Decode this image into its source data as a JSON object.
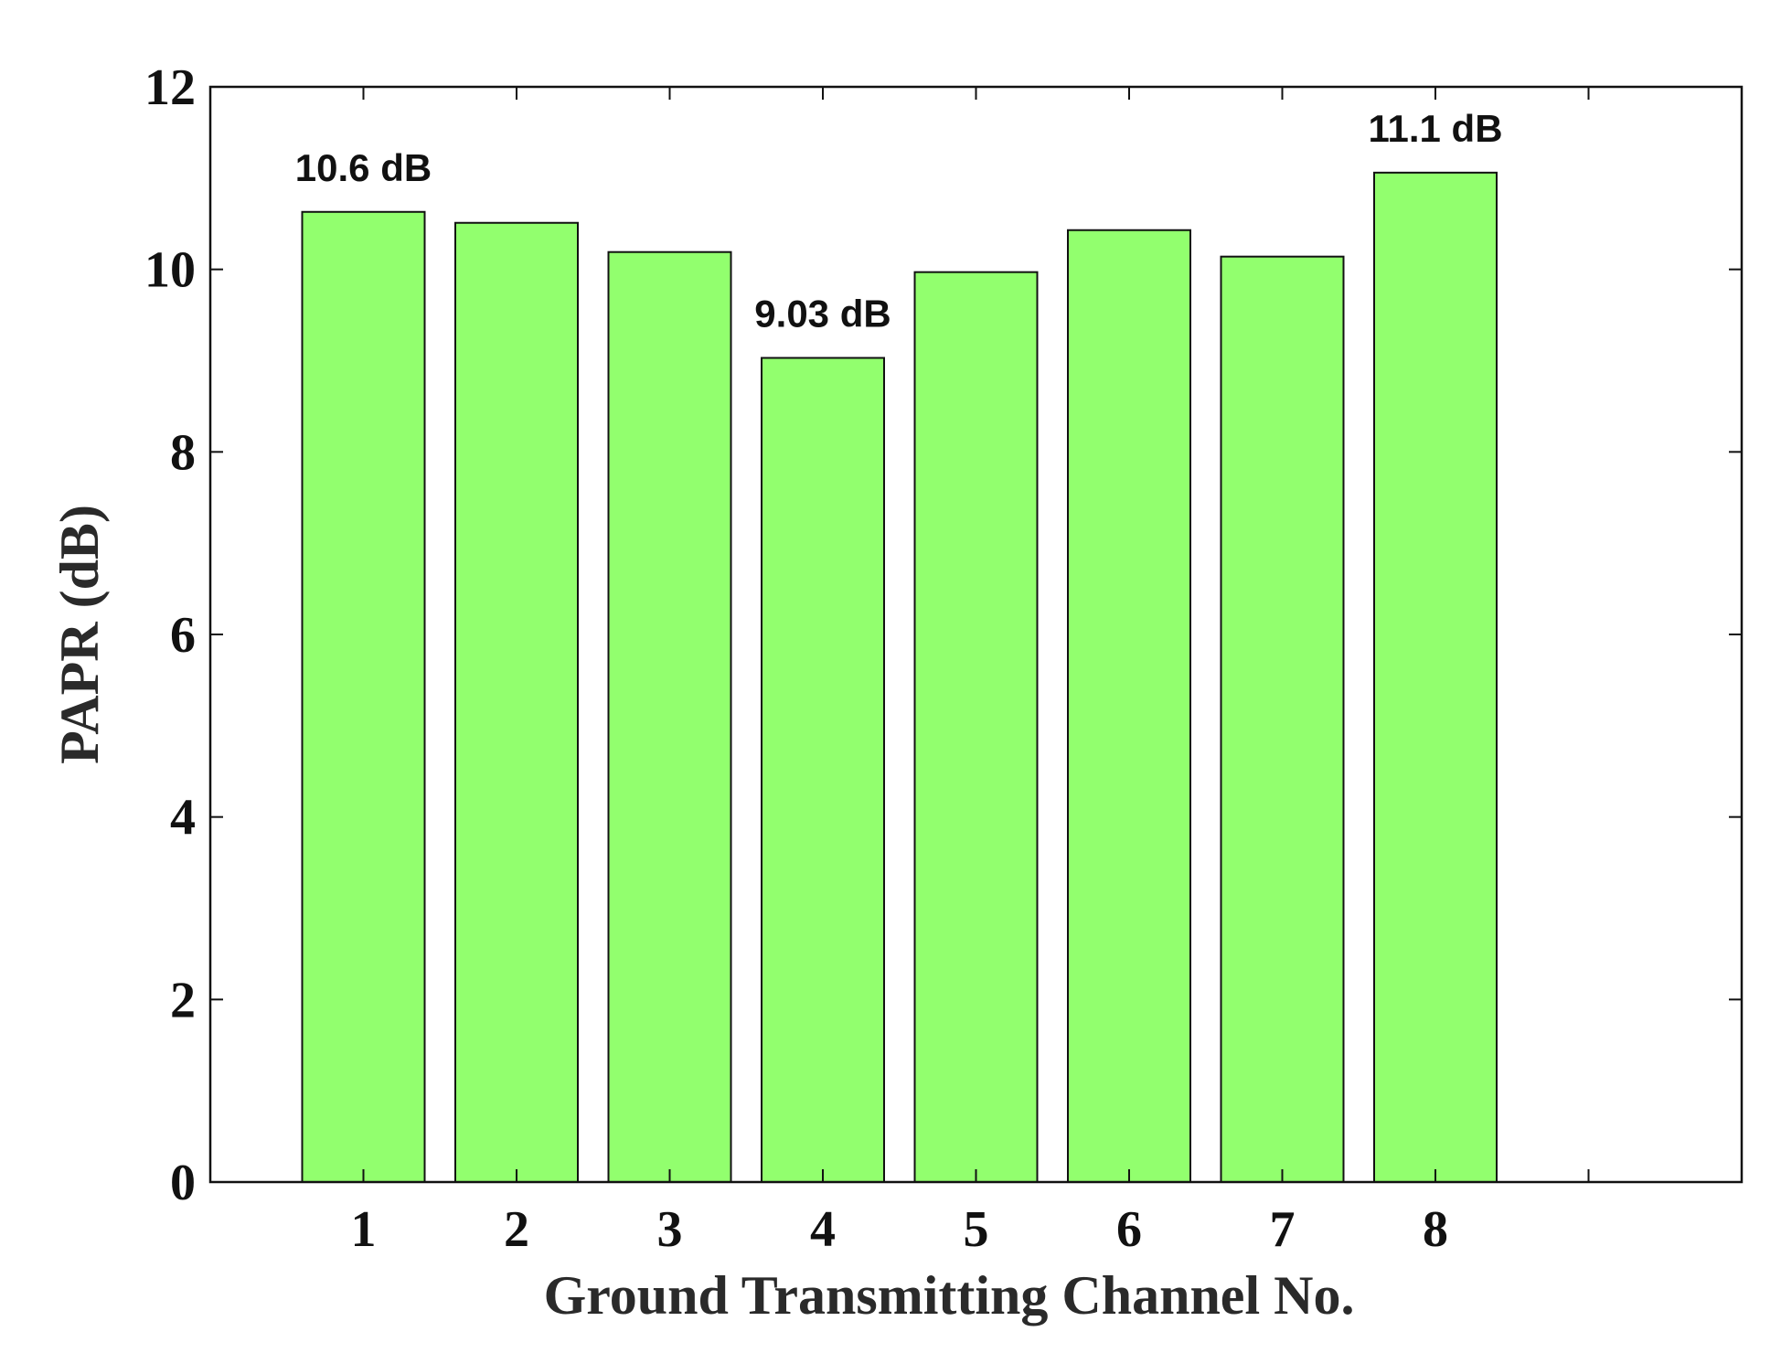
{
  "chart_data": {
    "type": "bar",
    "title": "",
    "xlabel": "Ground Transmitting Channel No.",
    "ylabel": "PAPR (dB)",
    "categories": [
      "1",
      "2",
      "3",
      "4",
      "5",
      "6",
      "7",
      "8"
    ],
    "values": [
      10.63,
      10.51,
      10.19,
      9.03,
      9.97,
      10.43,
      10.14,
      11.06
    ],
    "xlim": [
      0,
      10
    ],
    "ylim": [
      0,
      12
    ],
    "yticks": [
      "0",
      "2",
      "4",
      "6",
      "8",
      "10",
      "12"
    ],
    "grid": false,
    "bar_color": "#92ff6e",
    "annotations": [
      {
        "category": "1",
        "text": "10.6 dB"
      },
      {
        "category": "4",
        "text": "9.03 dB"
      },
      {
        "category": "8",
        "text": "11.1 dB"
      }
    ]
  }
}
